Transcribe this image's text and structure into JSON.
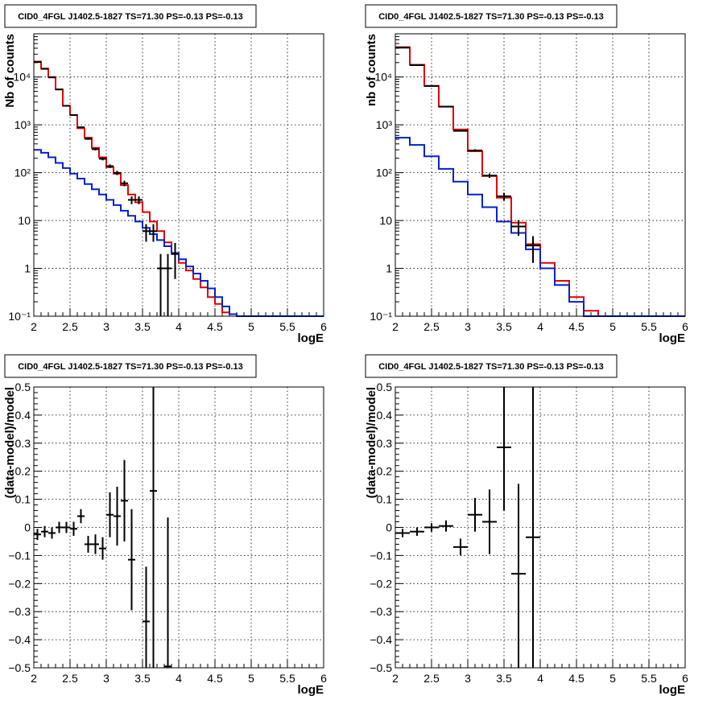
{
  "colors": {
    "data": "#000000",
    "model_total": "#e00000",
    "model_component": "#0022cc"
  },
  "chart_data": [
    {
      "type": "line",
      "title": "CID0_4FGL J1402.5-1827 TS=71.30 PS=-0.13 PS=-0.13",
      "xlabel": "logE",
      "ylabel": "Nb of counts",
      "xlim": [
        2,
        6
      ],
      "ylim": [
        0.1,
        80000
      ],
      "log_y": true,
      "grid": true,
      "x_ticks": [
        "2",
        "2.5",
        "3",
        "3.5",
        "4",
        "4.5",
        "5",
        "5.5",
        "6"
      ],
      "y_ticks": [
        {
          "value": 0.1,
          "label": "10⁻¹"
        },
        {
          "value": 1,
          "label": "1"
        },
        {
          "value": 10,
          "label": "10"
        },
        {
          "value": 100,
          "label": "10²"
        },
        {
          "value": 1000,
          "label": "10³"
        },
        {
          "value": 10000,
          "label": "10⁴"
        }
      ],
      "bin_edges": [
        2.0,
        2.1,
        2.2,
        2.3,
        2.4,
        2.5,
        2.6,
        2.7,
        2.8,
        2.9,
        3.0,
        3.1,
        3.2,
        3.3,
        3.4,
        3.5,
        3.6,
        3.7,
        3.8,
        3.9,
        4.0,
        4.1,
        4.2,
        4.3,
        4.4,
        4.5,
        4.6,
        4.7,
        4.8,
        4.9,
        5.0,
        5.1,
        5.2,
        5.3,
        5.4,
        5.5,
        5.6,
        5.7,
        5.8,
        5.9,
        6.0
      ],
      "series": [
        {
          "style": "step",
          "color_key": "model_total",
          "values": [
            21000,
            15000,
            10000,
            5500,
            2500,
            1600,
            850,
            540,
            330,
            210,
            130,
            95,
            55,
            35,
            24,
            15,
            9.5,
            6,
            3.5,
            2,
            1.3,
            0.9,
            0.6,
            0.4,
            0.25,
            0.18,
            0.12,
            0.11,
            0.1,
            0.1,
            0.1,
            0.1,
            0.1,
            0.1,
            0.1,
            0.1,
            0.1,
            0.1,
            0.1,
            0.1
          ]
        },
        {
          "style": "step",
          "color_key": "model_component",
          "values": [
            300,
            260,
            210,
            160,
            125,
            95,
            75,
            58,
            45,
            35,
            27,
            21,
            16,
            12.5,
            9.5,
            7,
            5.2,
            3.9,
            2.9,
            2.1,
            1.55,
            1.1,
            0.78,
            0.55,
            0.38,
            0.25,
            0.16,
            0.11,
            0.1,
            0.1,
            0.1,
            0.1,
            0.1,
            0.1,
            0.1,
            0.1,
            0.1,
            0.1,
            0.1,
            0.1
          ]
        },
        {
          "style": "errorbar",
          "color_key": "data",
          "points": [
            {
              "x": 2.05,
              "y": 20500,
              "lo": 20250,
              "hi": 20750
            },
            {
              "x": 2.15,
              "y": 14800,
              "lo": 14600,
              "hi": 15000
            },
            {
              "x": 2.25,
              "y": 9800,
              "lo": 9600,
              "hi": 10000
            },
            {
              "x": 2.35,
              "y": 5500,
              "lo": 5400,
              "hi": 5600
            },
            {
              "x": 2.45,
              "y": 2500,
              "lo": 2450,
              "hi": 2550
            },
            {
              "x": 2.55,
              "y": 1600,
              "lo": 1560,
              "hi": 1640
            },
            {
              "x": 2.65,
              "y": 890,
              "lo": 860,
              "hi": 920
            },
            {
              "x": 2.75,
              "y": 510,
              "lo": 487,
              "hi": 533
            },
            {
              "x": 2.85,
              "y": 310,
              "lo": 292,
              "hi": 328
            },
            {
              "x": 2.95,
              "y": 195,
              "lo": 181,
              "hi": 209
            },
            {
              "x": 3.05,
              "y": 137,
              "lo": 125,
              "hi": 149
            },
            {
              "x": 3.15,
              "y": 99,
              "lo": 89,
              "hi": 109
            },
            {
              "x": 3.25,
              "y": 60,
              "lo": 52,
              "hi": 68
            },
            {
              "x": 3.35,
              "y": 27,
              "lo": 22,
              "hi": 32
            },
            {
              "x": 3.45,
              "y": 27,
              "lo": 22,
              "hi": 32
            },
            {
              "x": 3.55,
              "y": 6,
              "lo": 3.6,
              "hi": 8.4
            },
            {
              "x": 3.65,
              "y": 6,
              "lo": 3.6,
              "hi": 8.4
            },
            {
              "x": 3.75,
              "y": 1,
              "lo": 0.1,
              "hi": 2
            },
            {
              "x": 3.85,
              "y": 1,
              "lo": 0.1,
              "hi": 2
            },
            {
              "x": 3.95,
              "y": 2,
              "lo": 0.6,
              "hi": 3.4
            }
          ]
        }
      ]
    },
    {
      "type": "line",
      "title": "CID0_4FGL J1402.5-1827 TS=71.30 PS=-0.13 PS=-0.13",
      "xlabel": "logE",
      "ylabel": "nb of counts",
      "xlim": [
        2,
        6
      ],
      "ylim": [
        0.1,
        80000
      ],
      "log_y": true,
      "grid": true,
      "x_ticks": [
        "2",
        "2.5",
        "3",
        "3.5",
        "4",
        "4.5",
        "5",
        "5.5",
        "6"
      ],
      "y_ticks": [
        {
          "value": 0.1,
          "label": "10⁻¹"
        },
        {
          "value": 1,
          "label": "1"
        },
        {
          "value": 10,
          "label": "10"
        },
        {
          "value": 100,
          "label": "10²"
        },
        {
          "value": 1000,
          "label": "10³"
        },
        {
          "value": 10000,
          "label": "10⁴"
        }
      ],
      "bin_edges": [
        2.0,
        2.2,
        2.4,
        2.6,
        2.8,
        3.0,
        3.2,
        3.4,
        3.6,
        3.8,
        4.0,
        4.2,
        4.4,
        4.6,
        4.8,
        5.0,
        5.2,
        5.4,
        5.6,
        5.8,
        6.0
      ],
      "series": [
        {
          "style": "step",
          "color_key": "model_total",
          "values": [
            42000,
            18000,
            6500,
            2400,
            800,
            280,
            85,
            30,
            9,
            3.2,
            1.3,
            0.55,
            0.25,
            0.13,
            0.1,
            0.1,
            0.1,
            0.1,
            0.1,
            0.1
          ]
        },
        {
          "style": "step",
          "color_key": "model_component",
          "values": [
            540,
            380,
            220,
            120,
            65,
            35,
            19,
            9.5,
            5.5,
            2.5,
            1,
            0.45,
            0.2,
            0.1,
            0.1,
            0.1,
            0.1,
            0.1,
            0.1,
            0.1
          ]
        },
        {
          "style": "errorbar",
          "color_key": "data",
          "points": [
            {
              "x": 2.1,
              "y": 41000,
              "lo": 40700,
              "hi": 41300
            },
            {
              "x": 2.3,
              "y": 17700,
              "lo": 17500,
              "hi": 17900
            },
            {
              "x": 2.5,
              "y": 6500,
              "lo": 6400,
              "hi": 6600
            },
            {
              "x": 2.7,
              "y": 2410,
              "lo": 2360,
              "hi": 2460
            },
            {
              "x": 2.9,
              "y": 750,
              "lo": 723,
              "hi": 777
            },
            {
              "x": 3.1,
              "y": 292,
              "lo": 275,
              "hi": 309
            },
            {
              "x": 3.3,
              "y": 87,
              "lo": 78,
              "hi": 96
            },
            {
              "x": 3.5,
              "y": 32,
              "lo": 26,
              "hi": 38
            },
            {
              "x": 3.7,
              "y": 7.5,
              "lo": 4.8,
              "hi": 10.2
            },
            {
              "x": 3.9,
              "y": 3,
              "lo": 1.3,
              "hi": 4.7
            }
          ]
        }
      ]
    },
    {
      "type": "scatter",
      "title": "CID0_4FGL J1402.5-1827 TS=71.30 PS=-0.13 PS=-0.13",
      "xlabel": "logE",
      "ylabel": "(data-model)/model",
      "xlim": [
        2,
        6
      ],
      "ylim": [
        -0.5,
        0.5
      ],
      "log_y": false,
      "grid": true,
      "x_ticks": [
        "2",
        "2.5",
        "3",
        "3.5",
        "4",
        "4.5",
        "5",
        "5.5",
        "6"
      ],
      "y_ticks": [
        {
          "value": -0.5,
          "label": "−0.5"
        },
        {
          "value": -0.4,
          "label": "−0.4"
        },
        {
          "value": -0.3,
          "label": "−0.3"
        },
        {
          "value": -0.2,
          "label": "−0.2"
        },
        {
          "value": -0.1,
          "label": "−0.1"
        },
        {
          "value": 0,
          "label": "0"
        },
        {
          "value": 0.1,
          "label": "0.1"
        },
        {
          "value": 0.2,
          "label": "0.2"
        },
        {
          "value": 0.3,
          "label": "0.3"
        },
        {
          "value": 0.4,
          "label": "0.4"
        },
        {
          "value": 0.5,
          "label": "0.5"
        }
      ],
      "half_width": 0.05,
      "series": [
        {
          "style": "errorbar",
          "color_key": "data",
          "points": [
            {
              "x": 2.05,
              "y": -0.025,
              "lo": -0.045,
              "hi": -0.005
            },
            {
              "x": 2.15,
              "y": -0.015,
              "lo": -0.035,
              "hi": 0.005
            },
            {
              "x": 2.25,
              "y": -0.02,
              "lo": -0.04,
              "hi": 0.0
            },
            {
              "x": 2.35,
              "y": 0.0,
              "lo": -0.02,
              "hi": 0.02
            },
            {
              "x": 2.45,
              "y": 0.0,
              "lo": -0.02,
              "hi": 0.02
            },
            {
              "x": 2.55,
              "y": -0.005,
              "lo": -0.03,
              "hi": 0.02
            },
            {
              "x": 2.65,
              "y": 0.04,
              "lo": 0.015,
              "hi": 0.065
            },
            {
              "x": 2.75,
              "y": -0.06,
              "lo": -0.09,
              "hi": -0.03
            },
            {
              "x": 2.85,
              "y": -0.06,
              "lo": -0.095,
              "hi": -0.025
            },
            {
              "x": 2.95,
              "y": -0.075,
              "lo": -0.115,
              "hi": -0.035
            },
            {
              "x": 3.05,
              "y": 0.045,
              "lo": -0.035,
              "hi": 0.125
            },
            {
              "x": 3.15,
              "y": 0.04,
              "lo": -0.065,
              "hi": 0.145
            },
            {
              "x": 3.25,
              "y": 0.095,
              "lo": -0.05,
              "hi": 0.24
            },
            {
              "x": 3.35,
              "y": -0.115,
              "lo": -0.295,
              "hi": 0.065
            },
            {
              "x": 3.55,
              "y": -0.335,
              "lo": -0.5,
              "hi": -0.14
            },
            {
              "x": 3.65,
              "y": 0.13,
              "lo": -0.5,
              "hi": 0.5
            },
            {
              "x": 3.85,
              "y": -0.495,
              "lo": -0.5,
              "hi": 0.035
            }
          ]
        }
      ]
    },
    {
      "type": "scatter",
      "title": "CID0_4FGL J1402.5-1827 TS=71.30 PS=-0.13 PS=-0.13",
      "xlabel": "logE",
      "ylabel": "(data-model)/model",
      "xlim": [
        2,
        6
      ],
      "ylim": [
        -0.5,
        0.5
      ],
      "log_y": false,
      "grid": true,
      "x_ticks": [
        "2",
        "2.5",
        "3",
        "3.5",
        "4",
        "4.5",
        "5",
        "5.5",
        "6"
      ],
      "y_ticks": [
        {
          "value": -0.5,
          "label": "−0.5"
        },
        {
          "value": -0.4,
          "label": "−0.4"
        },
        {
          "value": -0.3,
          "label": "−0.3"
        },
        {
          "value": -0.2,
          "label": "−0.2"
        },
        {
          "value": -0.1,
          "label": "−0.1"
        },
        {
          "value": 0,
          "label": "0"
        },
        {
          "value": 0.1,
          "label": "0.1"
        },
        {
          "value": 0.2,
          "label": "0.2"
        },
        {
          "value": 0.3,
          "label": "0.3"
        },
        {
          "value": 0.4,
          "label": "0.4"
        },
        {
          "value": 0.5,
          "label": "0.5"
        }
      ],
      "half_width": 0.1,
      "series": [
        {
          "style": "errorbar",
          "color_key": "data",
          "points": [
            {
              "x": 2.1,
              "y": -0.02,
              "lo": -0.035,
              "hi": -0.005
            },
            {
              "x": 2.3,
              "y": -0.015,
              "lo": -0.03,
              "hi": 0.0
            },
            {
              "x": 2.5,
              "y": 0.0,
              "lo": -0.015,
              "hi": 0.015
            },
            {
              "x": 2.7,
              "y": 0.005,
              "lo": -0.015,
              "hi": 0.025
            },
            {
              "x": 2.9,
              "y": -0.07,
              "lo": -0.1,
              "hi": -0.04
            },
            {
              "x": 3.1,
              "y": 0.045,
              "lo": -0.015,
              "hi": 0.105
            },
            {
              "x": 3.3,
              "y": 0.02,
              "lo": -0.095,
              "hi": 0.135
            },
            {
              "x": 3.5,
              "y": 0.285,
              "lo": 0.06,
              "hi": 0.5
            },
            {
              "x": 3.7,
              "y": -0.165,
              "lo": -0.5,
              "hi": 0.155
            },
            {
              "x": 3.9,
              "y": -0.035,
              "lo": -0.5,
              "hi": 0.5
            }
          ]
        }
      ]
    }
  ]
}
